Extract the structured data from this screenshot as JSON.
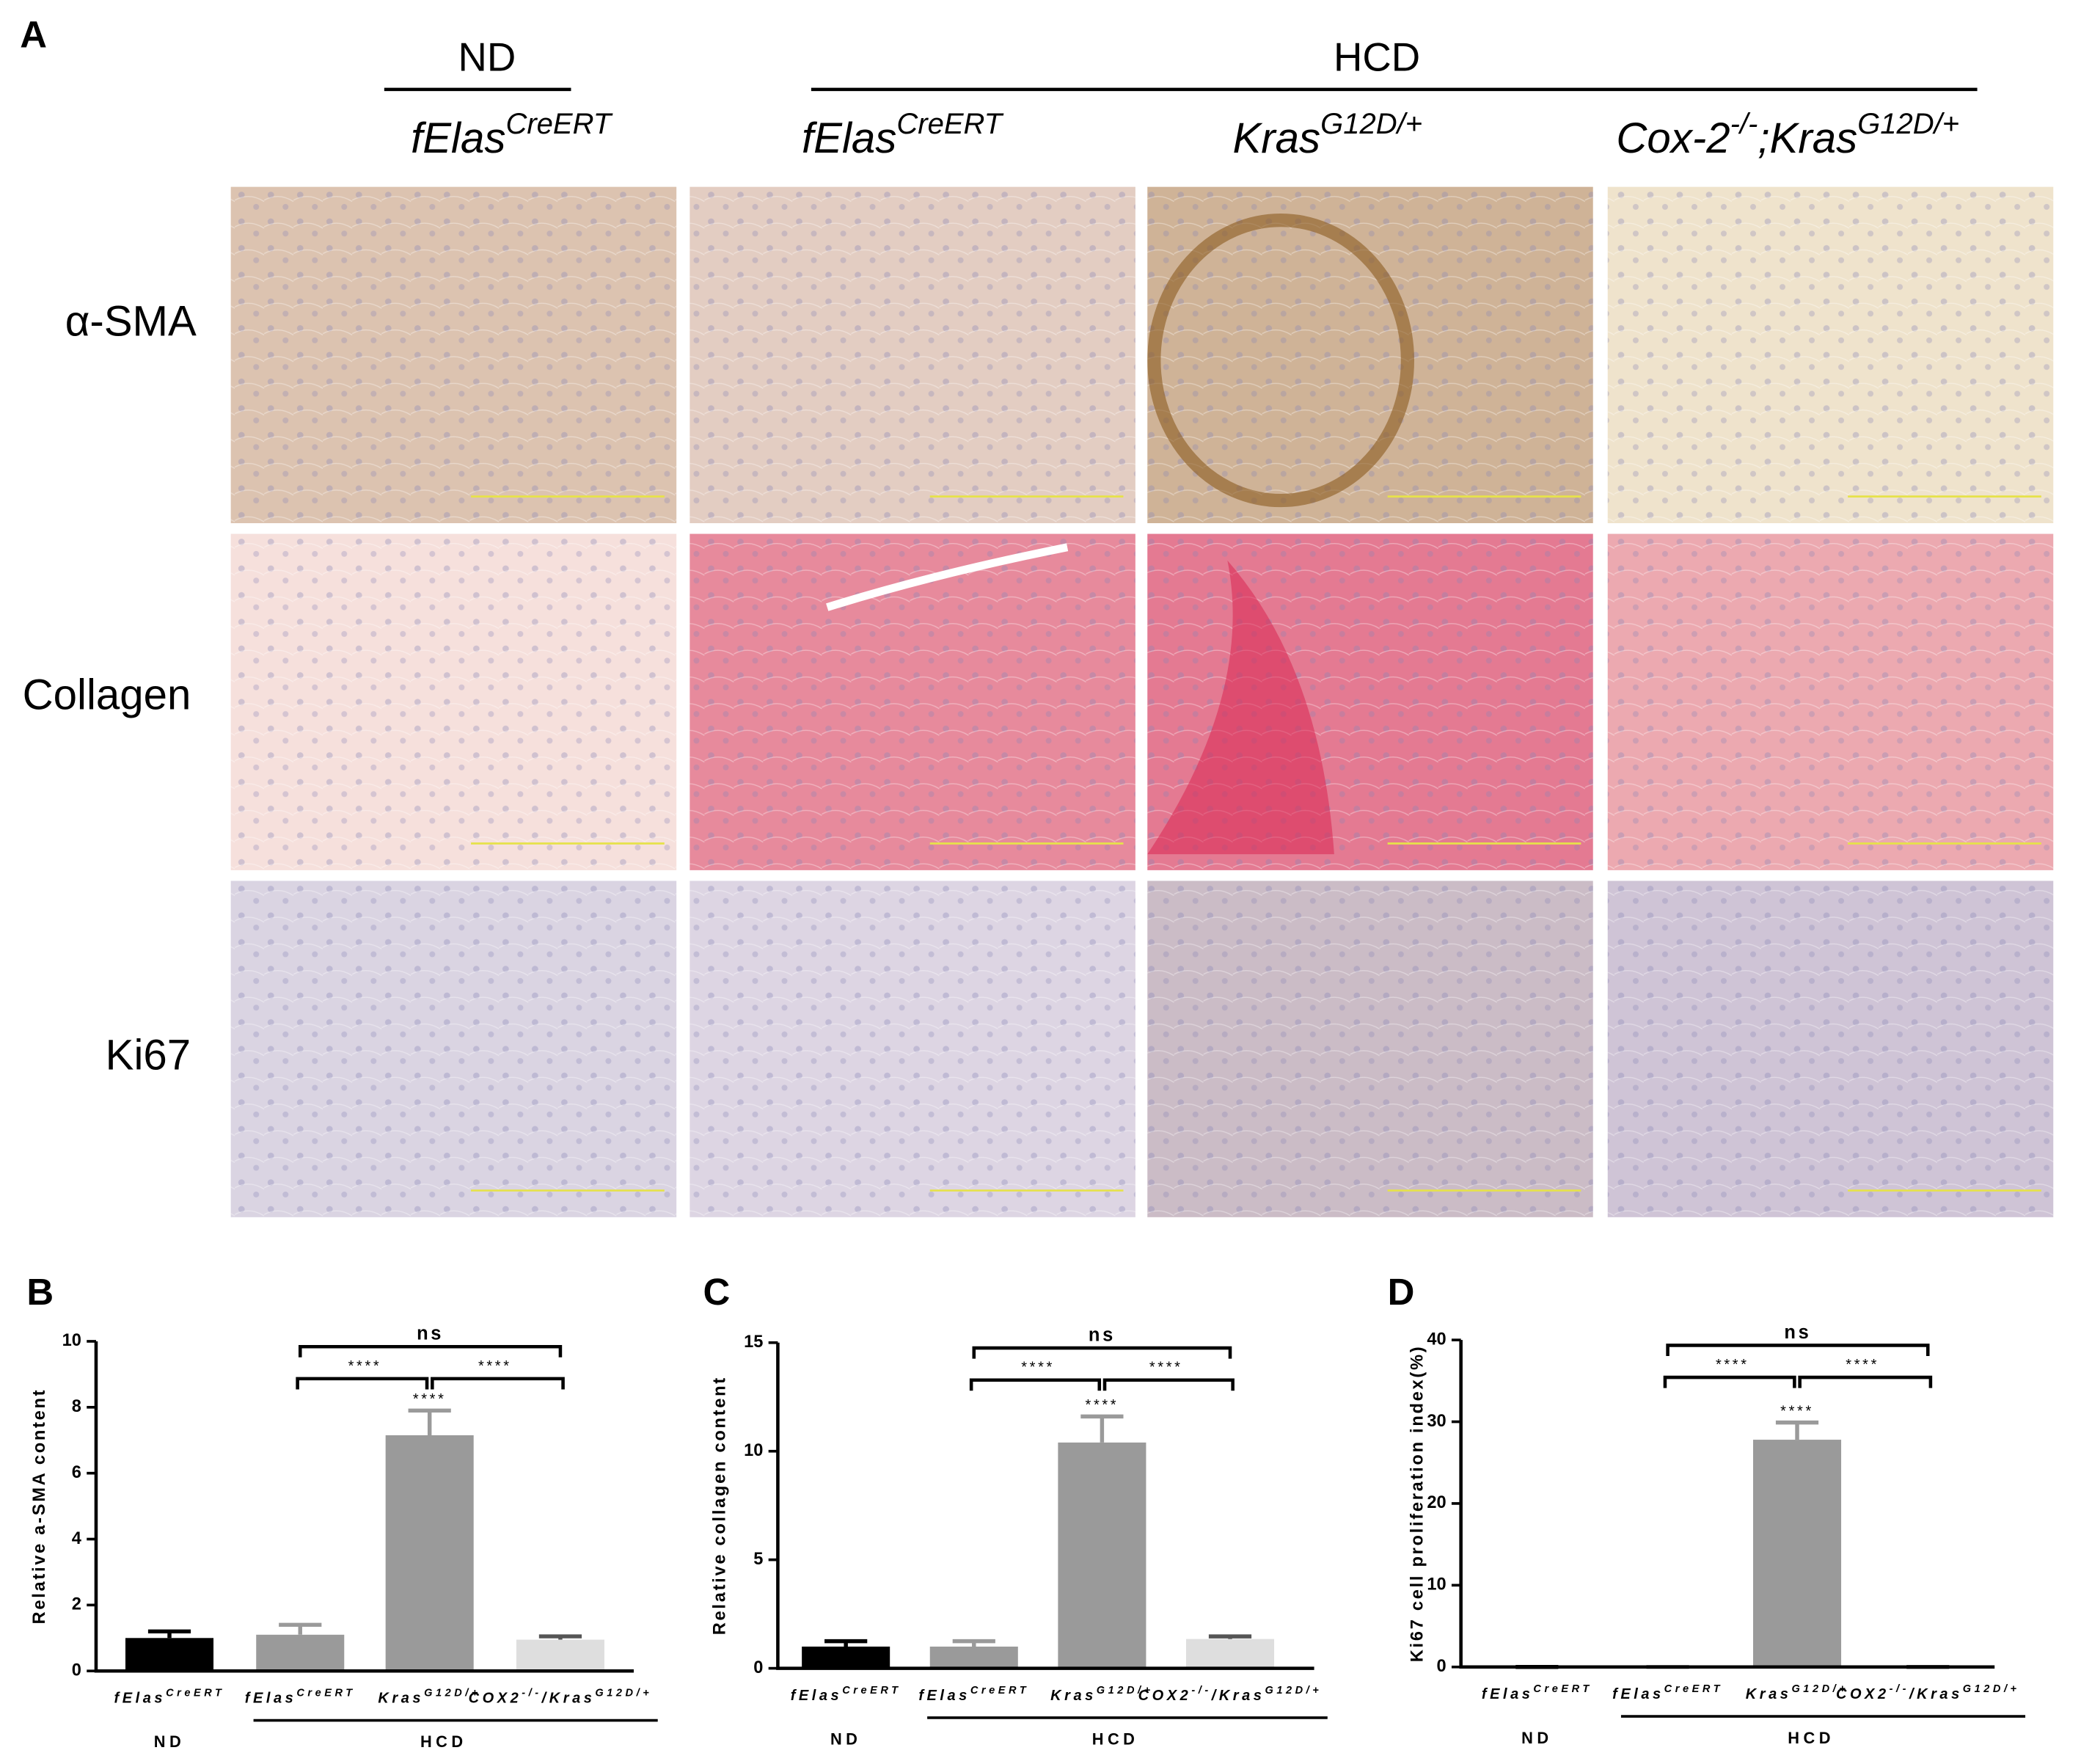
{
  "panel_A": {
    "label": "A",
    "groups": [
      {
        "label": "ND"
      },
      {
        "label": "HCD"
      }
    ],
    "columns": [
      [
        "fElas",
        {
          "sup": "CreERT"
        }
      ],
      [
        "fElas",
        {
          "sup": "CreERT"
        }
      ],
      [
        "Kras",
        {
          "sup": "G12D/+"
        }
      ],
      [
        "Cox-2",
        {
          "sup": "-/-"
        },
        ";Kras",
        {
          "sup": "G12D/+"
        }
      ]
    ],
    "rows": [
      "α-SMA",
      "Collagen",
      "Ki67"
    ]
  },
  "chart_data": [
    {
      "type": "bar",
      "panel": "B",
      "ylabel": "Relative a-SMA content",
      "categories": [
        [
          "fElas",
          {
            "sup": "CreERT"
          }
        ],
        [
          "fElas",
          {
            "sup": "CreERT"
          }
        ],
        [
          "Kras",
          {
            "sup": "G12D/+"
          }
        ],
        [
          "COX2",
          {
            "sup": "-/-"
          },
          "/Kras",
          {
            "sup": "G12D/+"
          }
        ]
      ],
      "values": [
        1.0,
        1.1,
        7.15,
        0.95
      ],
      "errors": [
        0.2,
        0.3,
        0.75,
        0.1
      ],
      "colors": [
        "#000000",
        "#9a9a9a",
        "#9a9a9a",
        "#dedede"
      ],
      "ylim": [
        0,
        10
      ],
      "yticks": [
        0,
        2,
        4,
        6,
        8,
        10
      ],
      "significance": [
        null,
        null,
        "****",
        null
      ],
      "brackets": [
        {
          "label": "ns",
          "between": [
            1,
            3
          ]
        },
        {
          "label": "****",
          "between": [
            1,
            2
          ]
        },
        {
          "label": "****",
          "between": [
            2,
            3
          ]
        }
      ],
      "groups": [
        {
          "label": "ND",
          "span": [
            0,
            0
          ]
        },
        {
          "label": "HCD",
          "span": [
            1,
            3
          ]
        }
      ]
    },
    {
      "type": "bar",
      "panel": "C",
      "ylabel": "Relative collagen content",
      "categories": [
        [
          "fElas",
          {
            "sup": "CreERT"
          }
        ],
        [
          "fElas",
          {
            "sup": "CreERT"
          }
        ],
        [
          "Kras",
          {
            "sup": "G12D/+"
          }
        ],
        [
          "COX2",
          {
            "sup": "-/-"
          },
          "/Kras",
          {
            "sup": "G12D/+"
          }
        ]
      ],
      "values": [
        1.0,
        1.0,
        10.4,
        1.35
      ],
      "errors": [
        0.25,
        0.25,
        1.2,
        0.12
      ],
      "colors": [
        "#000000",
        "#9a9a9a",
        "#9a9a9a",
        "#dedede"
      ],
      "ylim": [
        0,
        15
      ],
      "yticks": [
        0,
        5,
        10,
        15
      ],
      "significance": [
        null,
        null,
        "****",
        null
      ],
      "brackets": [
        {
          "label": "ns",
          "between": [
            1,
            3
          ]
        },
        {
          "label": "****",
          "between": [
            1,
            2
          ]
        },
        {
          "label": "****",
          "between": [
            2,
            3
          ]
        }
      ],
      "groups": [
        {
          "label": "ND",
          "span": [
            0,
            0
          ]
        },
        {
          "label": "HCD",
          "span": [
            1,
            3
          ]
        }
      ]
    },
    {
      "type": "bar",
      "panel": "D",
      "ylabel": "Ki67 cell proliferation index(%)",
      "categories": [
        [
          "fElas",
          {
            "sup": "CreERT"
          }
        ],
        [
          "fElas",
          {
            "sup": "CreERT"
          }
        ],
        [
          "Kras",
          {
            "sup": "G12D/+"
          }
        ],
        [
          "COX2",
          {
            "sup": "-/-"
          },
          "/Kras",
          {
            "sup": "G12D/+"
          }
        ]
      ],
      "values": [
        0,
        0,
        27.8,
        0
      ],
      "errors": [
        0,
        0,
        2.1,
        0
      ],
      "colors": [
        "#000000",
        "#9a9a9a",
        "#9a9a9a",
        "#dedede"
      ],
      "ylim": [
        0,
        40
      ],
      "yticks": [
        0,
        10,
        20,
        30,
        40
      ],
      "significance": [
        null,
        null,
        "****",
        null
      ],
      "brackets": [
        {
          "label": "ns",
          "between": [
            1,
            3
          ]
        },
        {
          "label": "****",
          "between": [
            1,
            2
          ]
        },
        {
          "label": "****",
          "between": [
            2,
            3
          ]
        }
      ],
      "groups": [
        {
          "label": "ND",
          "span": [
            0,
            0
          ]
        },
        {
          "label": "HCD",
          "span": [
            1,
            3
          ]
        }
      ]
    }
  ]
}
